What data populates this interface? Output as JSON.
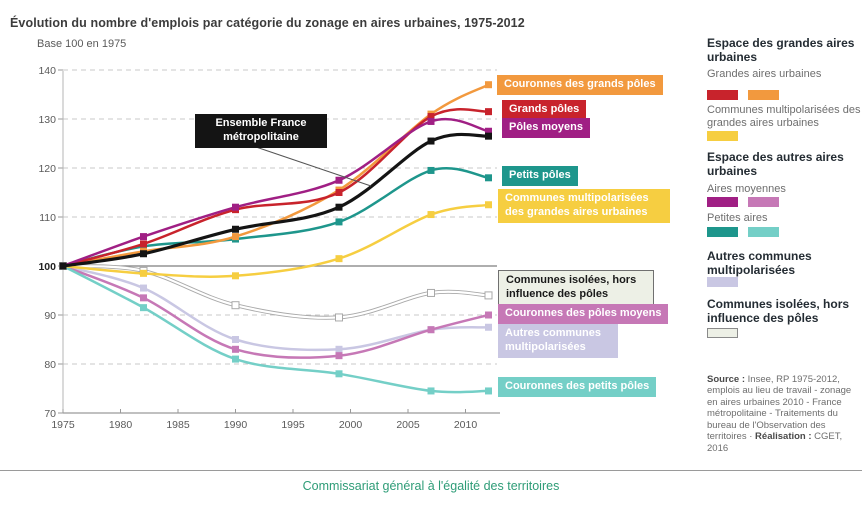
{
  "page": {
    "title": "Évolution du nombre d'emplois par catégorie du zonage en aires urbaines, 1975-2012",
    "axis_note": "Base 100 en 1975",
    "footer": "Commissariat général à l'égalité des territoires"
  },
  "chart_data": {
    "type": "line",
    "title": "Évolution du nombre d'emplois par catégorie du zonage en aires urbaines, 1975-2012",
    "ylabel": "Base 100 en 1975",
    "xlabel": "",
    "x": [
      1975,
      1982,
      1990,
      1999,
      2007,
      2012
    ],
    "x_axis_ticks": [
      1975,
      1980,
      1985,
      1990,
      1995,
      2000,
      2005,
      2010
    ],
    "y_ticks": [
      70,
      80,
      90,
      100,
      110,
      120,
      130,
      140
    ],
    "ylim": [
      70,
      140
    ],
    "xlim": [
      1975,
      2012
    ],
    "grid": "horizontal dashed, solid reference line at 100",
    "legend_position": "right panel + direct line labels",
    "series": [
      {
        "key": "communes_isolees",
        "name": "Communes isolées, hors influence des pôles",
        "color": "#FFFFFF",
        "casing": "#A9A9A9",
        "values": [
          100,
          99,
          92,
          89.5,
          94.5,
          94
        ]
      },
      {
        "key": "autres_communes_multipolarisees",
        "name": "Autres communes multipolarisées",
        "color": "#C9C7E3",
        "values": [
          100,
          95.5,
          85,
          83,
          87,
          87.5
        ]
      },
      {
        "key": "couronnes_poles_moyens",
        "name": "Couronnes des pôles moyens",
        "color": "#C678B6",
        "values": [
          100,
          93.5,
          83,
          81.7,
          87,
          90
        ]
      },
      {
        "key": "couronnes_petits_poles",
        "name": "Couronnes des petits pôles",
        "color": "#74CFC7",
        "values": [
          100,
          91.5,
          81,
          78,
          74.5,
          74.5
        ]
      },
      {
        "key": "communes_multipolarisees_gau",
        "name": "Communes multipolarisées des grandes aires urbaines",
        "color": "#F6CE41",
        "values": [
          100,
          98.5,
          98,
          101.5,
          110.5,
          112.5
        ]
      },
      {
        "key": "petits_poles",
        "name": "Petits pôles",
        "color": "#1E968C",
        "values": [
          100,
          104,
          105.5,
          109,
          119.5,
          118
        ]
      },
      {
        "key": "couronnes_grands_poles",
        "name": "Couronnes des grands pôles",
        "color": "#F2993E",
        "values": [
          100,
          103,
          106,
          115.5,
          131,
          137
        ]
      },
      {
        "key": "grands_poles",
        "name": "Grands pôles",
        "color": "#C8232C",
        "values": [
          100,
          104.5,
          111.5,
          115,
          130.5,
          131.5
        ]
      },
      {
        "key": "poles_moyens",
        "name": "Pôles moyens",
        "color": "#A01F84",
        "values": [
          100,
          106,
          112,
          117.5,
          129.5,
          127.5
        ]
      },
      {
        "key": "ensemble",
        "name": "Ensemble France métropolitaine",
        "color": "#141414",
        "values": [
          100,
          102.5,
          107.5,
          112,
          125.5,
          126.5
        ]
      }
    ]
  },
  "legend": {
    "sections": [
      {
        "title": "Espace des grandes aires urbaines",
        "items": [
          {
            "label": "Grandes aires urbaines",
            "swatches": [
              "#C8232C",
              "#F2993E"
            ]
          },
          {
            "label": "Communes multipolarisées des grandes aires urbaines",
            "swatches": [
              "#F6CE41"
            ]
          }
        ]
      },
      {
        "title": "Espace des autres aires urbaines",
        "items": [
          {
            "label": "Aires moyennes",
            "swatches": [
              "#A01F84",
              "#C678B6"
            ]
          },
          {
            "label": "Petites aires",
            "swatches": [
              "#1E968C",
              "#74CFC7"
            ]
          }
        ]
      },
      {
        "title": "Autres communes multipolarisées",
        "items": [
          {
            "label": "",
            "swatches": [
              "#C9C7E3"
            ]
          }
        ]
      },
      {
        "title": "Communes isolées, hors influence des pôles",
        "items": [
          {
            "label": "",
            "swatches": [
              "#EDF0E6"
            ],
            "bordered": true
          }
        ]
      }
    ],
    "source": {
      "label1": "Source :",
      "text1": " Insee, RP 1975-2012, emplois au lieu de travail - zonage en aires urbaines 2010 - France métropolitaine - Traitements du bureau de l'Observation des territoires · ",
      "label2": "Réalisation :",
      "text2": " CGET, 2016"
    }
  },
  "colors": {
    "footer_green": "#2E9C77",
    "grid_dashed": "#C9C9C9",
    "grid_solid_100": "#7d7d7d",
    "axis": "#9a9a9a",
    "tick_text": "#5a5a5a",
    "label_box_bg": "#EDF0E6"
  }
}
